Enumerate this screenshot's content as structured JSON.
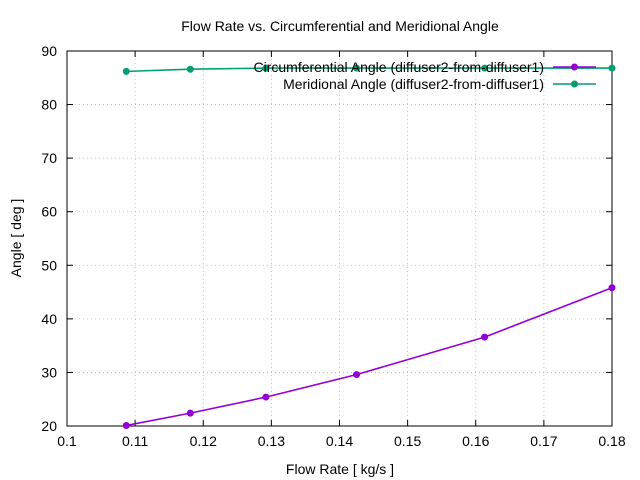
{
  "chart_data": {
    "type": "line",
    "title": "Flow Rate vs. Circumferential and Meridional Angle",
    "xlabel": "Flow Rate [ kg/s ]",
    "ylabel": "Angle [ deg ]",
    "xlim": [
      0.1,
      0.18
    ],
    "ylim": [
      20,
      90
    ],
    "x_ticks": [
      0.1,
      0.11,
      0.12,
      0.13,
      0.14,
      0.15,
      0.16,
      0.17,
      0.18
    ],
    "x_tick_labels": [
      "0.1",
      "0.11",
      "0.12",
      "0.13",
      "0.14",
      "0.15",
      "0.16",
      "0.17",
      "0.18"
    ],
    "y_ticks": [
      20,
      30,
      40,
      50,
      60,
      70,
      80,
      90
    ],
    "y_tick_labels": [
      "20",
      "30",
      "40",
      "50",
      "60",
      "70",
      "80",
      "90"
    ],
    "grid": true,
    "legend_position": "top-right",
    "series": [
      {
        "name": "Circumferential Angle (diffuser2-from-diffuser1)",
        "color": "#9400d3",
        "x": [
          0.1087,
          0.1181,
          0.1292,
          0.1425,
          0.1613,
          0.18
        ],
        "y": [
          20.1,
          22.4,
          25.4,
          29.6,
          36.6,
          45.8
        ]
      },
      {
        "name": "Meridional Angle (diffuser2-from-diffuser1)",
        "color": "#009e73",
        "x": [
          0.1087,
          0.1181,
          0.1292,
          0.1425,
          0.1613,
          0.18
        ],
        "y": [
          86.2,
          86.6,
          86.8,
          86.8,
          86.8,
          86.8
        ]
      }
    ]
  }
}
